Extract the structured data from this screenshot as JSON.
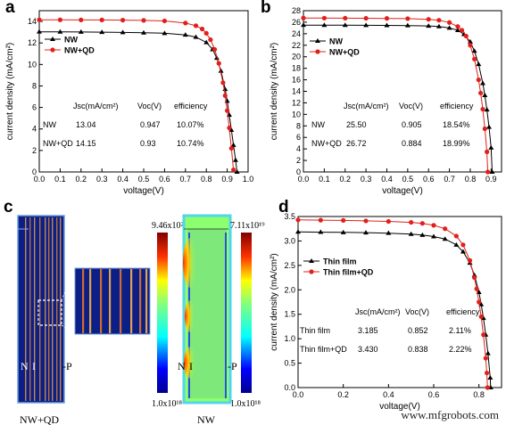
{
  "panel_letters": {
    "a": "a",
    "b": "b",
    "c": "c",
    "d": "d"
  },
  "colors": {
    "black_series": "#000000",
    "red_series": "#e0201b",
    "map_bg": "#0b1f86",
    "map_frame": "#6fa0e0"
  },
  "chart_data": [
    {
      "id": "a",
      "type": "line",
      "xlabel": "voltage(V)",
      "ylabel": "current density (mA/cm²)",
      "xlim": [
        0.0,
        1.0
      ],
      "ylim": [
        0,
        15
      ],
      "xticks": [
        "0.0",
        "0.1",
        "0.2",
        "0.3",
        "0.4",
        "0.5",
        "0.6",
        "0.7",
        "0.8",
        "0.9",
        "1.0"
      ],
      "yticks": [
        "0",
        "2",
        "4",
        "6",
        "8",
        "10",
        "12",
        "14"
      ],
      "legend": "top-left",
      "series": [
        {
          "name": "NW",
          "marker": "triangle",
          "color": "#000000",
          "x": [
            0.0,
            0.1,
            0.2,
            0.3,
            0.4,
            0.5,
            0.6,
            0.7,
            0.75,
            0.8,
            0.83,
            0.85,
            0.87,
            0.89,
            0.9,
            0.91,
            0.92,
            0.93,
            0.94,
            0.947
          ],
          "y": [
            13.04,
            13.03,
            13.02,
            13.0,
            12.98,
            12.95,
            12.9,
            12.75,
            12.55,
            12.05,
            11.4,
            10.6,
            9.4,
            7.7,
            6.6,
            5.3,
            3.9,
            2.5,
            1.1,
            0.0
          ]
        },
        {
          "name": "NW+QD",
          "marker": "circle",
          "color": "#e0201b",
          "x": [
            0.0,
            0.1,
            0.2,
            0.3,
            0.4,
            0.5,
            0.6,
            0.7,
            0.75,
            0.78,
            0.8,
            0.82,
            0.84,
            0.86,
            0.88,
            0.89,
            0.9,
            0.91,
            0.92,
            0.93
          ],
          "y": [
            14.15,
            14.15,
            14.14,
            14.14,
            14.12,
            14.1,
            14.05,
            13.85,
            13.6,
            13.3,
            12.9,
            12.3,
            11.4,
            10.1,
            8.3,
            7.1,
            5.7,
            4.1,
            2.2,
            0.2
          ]
        }
      ],
      "table": {
        "headers": [
          "Jsc(mA/cm²)",
          "Voc(V)",
          "efficiency"
        ],
        "rows": [
          [
            "NW",
            "13.04",
            "0.947",
            "10.07%"
          ],
          [
            "NW+QD",
            "14.15",
            "0.93",
            "10.74%"
          ]
        ]
      }
    },
    {
      "id": "b",
      "type": "line",
      "xlabel": "voltage(V)",
      "ylabel": "current density (mA/cm²)",
      "xlim": [
        0.0,
        0.95
      ],
      "ylim": [
        0,
        28
      ],
      "xticks": [
        "0.0",
        "0.1",
        "0.2",
        "0.3",
        "0.4",
        "0.5",
        "0.6",
        "0.7",
        "0.8",
        "0.9"
      ],
      "yticks": [
        "0",
        "2",
        "4",
        "6",
        "8",
        "10",
        "12",
        "14",
        "16",
        "18",
        "20",
        "22",
        "24",
        "26",
        "28"
      ],
      "legend": "top-left",
      "series": [
        {
          "name": "NW",
          "marker": "triangle",
          "color": "#000000",
          "x": [
            0.0,
            0.1,
            0.2,
            0.3,
            0.4,
            0.5,
            0.6,
            0.65,
            0.7,
            0.74,
            0.77,
            0.8,
            0.82,
            0.84,
            0.86,
            0.87,
            0.88,
            0.89,
            0.9,
            0.905
          ],
          "y": [
            25.5,
            25.49,
            25.48,
            25.47,
            25.45,
            25.42,
            25.35,
            25.25,
            25.0,
            24.6,
            23.9,
            22.6,
            21.0,
            18.7,
            15.4,
            13.3,
            10.8,
            7.8,
            4.2,
            0.0
          ]
        },
        {
          "name": "NW+QD",
          "marker": "circle",
          "color": "#e0201b",
          "x": [
            0.0,
            0.1,
            0.2,
            0.3,
            0.4,
            0.5,
            0.6,
            0.65,
            0.7,
            0.74,
            0.76,
            0.78,
            0.8,
            0.82,
            0.84,
            0.85,
            0.86,
            0.87,
            0.88,
            0.884
          ],
          "y": [
            26.72,
            26.71,
            26.7,
            26.68,
            26.66,
            26.62,
            26.5,
            26.35,
            25.95,
            25.25,
            24.6,
            23.6,
            22.0,
            19.6,
            16.0,
            13.7,
            10.9,
            7.5,
            3.5,
            0.0
          ]
        }
      ],
      "table": {
        "headers": [
          "Jsc(mA/cm²)",
          "Voc(V)",
          "efficiency"
        ],
        "rows": [
          [
            "NW",
            "25.50",
            "0.905",
            "18.54%"
          ],
          [
            "NW+QD",
            "26.72",
            "0.884",
            "18.99%"
          ]
        ]
      }
    },
    {
      "id": "d",
      "type": "line",
      "xlabel": "voltage(V)",
      "ylabel": "current density (mA/cm²)",
      "xlim": [
        0.0,
        0.9
      ],
      "ylim": [
        0.0,
        3.5
      ],
      "xticks": [
        "0.0",
        "0.2",
        "0.4",
        "0.6",
        "0.8"
      ],
      "yticks": [
        "0.0",
        "0.5",
        "1.0",
        "1.5",
        "2.0",
        "2.5",
        "3.0",
        "3.5"
      ],
      "legend": "top-left",
      "series": [
        {
          "name": "Thin film",
          "marker": "triangle",
          "color": "#000000",
          "x": [
            0.0,
            0.1,
            0.2,
            0.3,
            0.4,
            0.5,
            0.55,
            0.6,
            0.65,
            0.7,
            0.73,
            0.76,
            0.78,
            0.8,
            0.81,
            0.82,
            0.83,
            0.84,
            0.85,
            0.852
          ],
          "y": [
            3.185,
            3.18,
            3.175,
            3.17,
            3.16,
            3.14,
            3.12,
            3.09,
            3.04,
            2.92,
            2.78,
            2.55,
            2.3,
            1.95,
            1.7,
            1.42,
            1.08,
            0.7,
            0.2,
            0.0
          ]
        },
        {
          "name": "Thin film+QD",
          "marker": "circle",
          "color": "#e0201b",
          "x": [
            0.0,
            0.1,
            0.2,
            0.3,
            0.4,
            0.5,
            0.55,
            0.6,
            0.65,
            0.7,
            0.73,
            0.76,
            0.78,
            0.79,
            0.8,
            0.81,
            0.82,
            0.83,
            0.835,
            0.838
          ],
          "y": [
            3.43,
            3.425,
            3.42,
            3.41,
            3.4,
            3.38,
            3.36,
            3.32,
            3.25,
            3.1,
            2.92,
            2.6,
            2.25,
            2.02,
            1.75,
            1.45,
            1.08,
            0.6,
            0.3,
            0.0
          ]
        }
      ],
      "table": {
        "headers": [
          "Jsc(mA/cm²)",
          "Voc(V)",
          "efficiency"
        ],
        "rows": [
          [
            "Thin film",
            "3.185",
            "0.852",
            "2.11%"
          ],
          [
            "Thin film+QD",
            "3.430",
            "0.838",
            "2.22%"
          ]
        ]
      }
    }
  ],
  "panel_c": {
    "left_label": "NW+QD",
    "right_label": "NW",
    "scale_left": {
      "max": "9.46x10²¹",
      "min": "1.0x10¹⁸"
    },
    "scale_right": {
      "max": "7.11x10¹⁹",
      "min": "1.0x10¹⁸"
    },
    "region_labels": {
      "n": "N",
      "i": "I",
      "p": "-P"
    }
  },
  "watermark": "www.mfgrobots.com"
}
